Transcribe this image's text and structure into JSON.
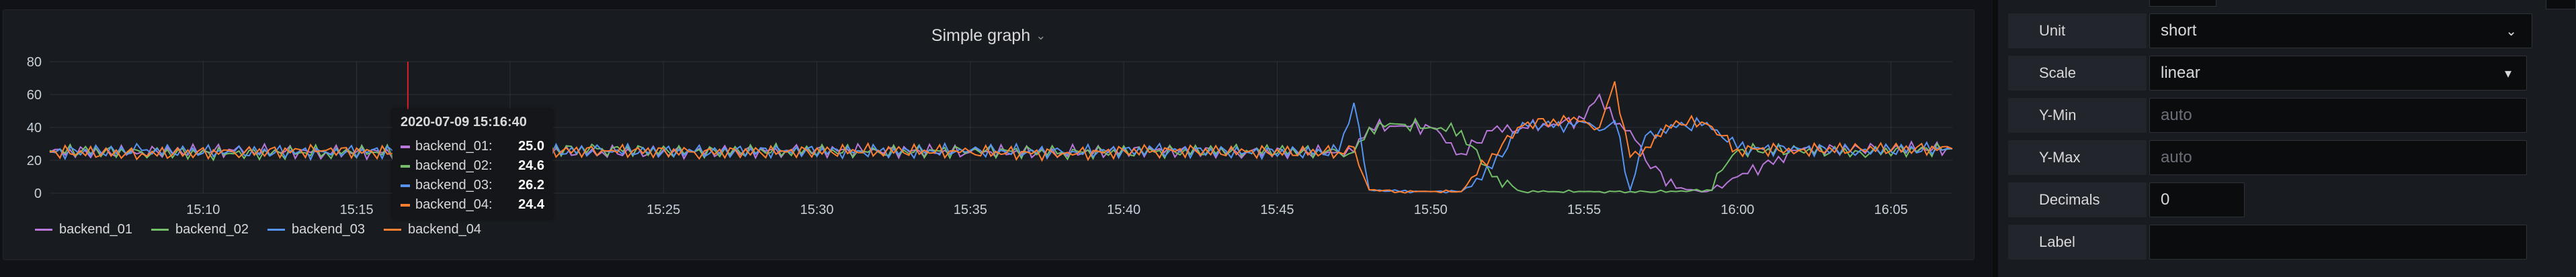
{
  "panel": {
    "title": "Simple graph",
    "title_chevron": "⌄"
  },
  "tooltip": {
    "time": "2020-07-09 15:16:40",
    "rows": [
      {
        "name": "backend_01:",
        "value": "25.0",
        "color": "#b877d9"
      },
      {
        "name": "backend_02:",
        "value": "24.6",
        "color": "#73bf69"
      },
      {
        "name": "backend_03:",
        "value": "26.2",
        "color": "#5794f2"
      },
      {
        "name": "backend_04:",
        "value": "24.4",
        "color": "#ff7f30"
      }
    ]
  },
  "legend": [
    {
      "name": "backend_01",
      "color": "#b877d9"
    },
    {
      "name": "backend_02",
      "color": "#73bf69"
    },
    {
      "name": "backend_03",
      "color": "#5794f2"
    },
    {
      "name": "backend_04",
      "color": "#ff7f30"
    }
  ],
  "chart_data": {
    "type": "line",
    "title": "Simple graph",
    "ylim": [
      0,
      80
    ],
    "yticks": [
      "0",
      "20",
      "40",
      "60",
      "80"
    ],
    "xticks": [
      "15:10",
      "15:15",
      "15:20",
      "15:25",
      "15:30",
      "15:35",
      "15:40",
      "15:45",
      "15:50",
      "15:55",
      "16:00",
      "16:05"
    ],
    "grid": true,
    "legend_position": "bottom-left",
    "cursor_time": "15:16:40",
    "x": [
      "15:05",
      "15:08",
      "15:11",
      "15:14",
      "15:17",
      "15:20",
      "15:23",
      "15:26",
      "15:29",
      "15:32",
      "15:35",
      "15:38",
      "15:41",
      "15:44",
      "15:47",
      "15:47.5",
      "15:48",
      "15:49",
      "15:50",
      "15:51",
      "15:52",
      "15:53",
      "15:54",
      "15:55",
      "15:55.5",
      "15:56",
      "15:56.5",
      "15:57",
      "15:58",
      "15:59",
      "16:00",
      "16:02",
      "16:04",
      "16:07"
    ],
    "series": [
      {
        "name": "backend_01",
        "color": "#b877d9",
        "values": [
          25,
          25,
          26,
          25,
          25,
          26,
          25,
          25,
          26,
          26,
          25,
          25,
          26,
          25,
          25,
          25,
          40,
          41,
          40,
          24,
          38,
          40,
          42,
          45,
          60,
          42,
          38,
          20,
          3,
          1,
          10,
          26,
          27,
          27
        ]
      },
      {
        "name": "backend_02",
        "color": "#73bf69",
        "values": [
          26,
          25,
          24,
          25,
          25,
          26,
          27,
          25,
          26,
          25,
          26,
          25,
          25,
          26,
          25,
          25,
          40,
          42,
          40,
          38,
          10,
          1,
          1,
          1,
          1,
          1,
          1,
          1,
          1,
          2,
          26,
          26,
          25,
          27
        ]
      },
      {
        "name": "backend_03",
        "color": "#5794f2",
        "values": [
          25,
          26,
          25,
          25,
          26,
          25,
          26,
          25,
          26,
          25,
          26,
          25,
          26,
          25,
          25,
          55,
          2,
          1,
          1,
          1,
          15,
          43,
          40,
          43,
          38,
          44,
          2,
          35,
          40,
          43,
          27,
          27,
          26,
          27
        ]
      },
      {
        "name": "backend_04",
        "color": "#ff7f30",
        "values": [
          25,
          24,
          25,
          26,
          24,
          25,
          26,
          25,
          25,
          26,
          25,
          24,
          26,
          25,
          25,
          28,
          2,
          1,
          1,
          1,
          24,
          41,
          45,
          44,
          40,
          68,
          22,
          28,
          44,
          42,
          27,
          26,
          27,
          27
        ]
      }
    ]
  },
  "options": {
    "unit_label": "Unit",
    "unit_value": "short",
    "unit_caret": "⌄",
    "scale_label": "Scale",
    "scale_value": "linear",
    "scale_caret": "▾",
    "ymin_label": "Y-Min",
    "ymin_placeholder": "auto",
    "ymax_label": "Y-Max",
    "ymax_placeholder": "auto",
    "decimals_label": "Decimals",
    "decimals_value": "0",
    "label_label": "Label",
    "label_value": ""
  }
}
